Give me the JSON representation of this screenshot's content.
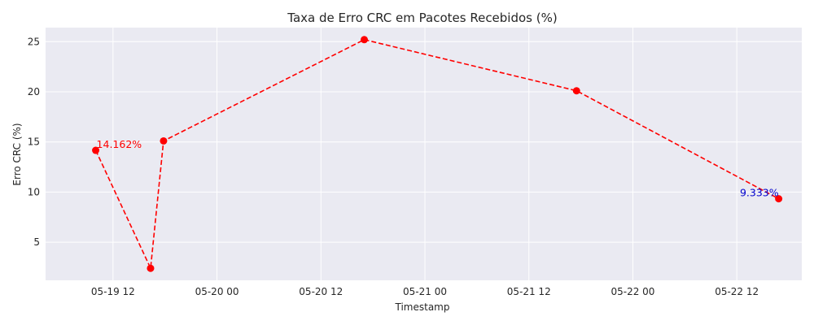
{
  "chart_data": {
    "type": "line",
    "title": "Taxa de Erro CRC em Pacotes Recebidos (%)",
    "xlabel": "Timestamp",
    "ylabel": "Erro CRC (%)",
    "x_tick_labels": [
      "05-19 12",
      "05-20 00",
      "05-20 12",
      "05-21 00",
      "05-21 12",
      "05-22 00",
      "05-22 12"
    ],
    "x_ticks": [
      "2024-05-19 12:00",
      "2024-05-20 00:00",
      "2024-05-20 12:00",
      "2024-05-21 00:00",
      "2024-05-21 12:00",
      "2024-05-22 00:00",
      "2024-05-22 12:00"
    ],
    "y_ticks": [
      5,
      10,
      15,
      20,
      25
    ],
    "xlim": [
      "2024-05-19 04:13",
      "2024-05-22 19:30"
    ],
    "ylim": [
      1.2,
      26.4
    ],
    "series": [
      {
        "x": [
          "2024-05-19 10:00",
          "2024-05-19 16:20",
          "2024-05-19 17:50",
          "2024-05-20 17:00",
          "2024-05-21 17:30",
          "2024-05-22 16:50"
        ],
        "values": [
          14.162,
          2.4,
          15.1,
          25.2,
          20.1,
          9.333
        ],
        "color": "#ff0000",
        "line_style": "dashed",
        "marker": "circle"
      }
    ],
    "annotations": [
      {
        "text": "14.162%",
        "x": "2024-05-19 10:00",
        "y": 14.162,
        "color": "#ff0000",
        "align": "start"
      },
      {
        "text": "9.333%",
        "x": "2024-05-22 16:50",
        "y": 9.333,
        "color": "#0000cd",
        "align": "end"
      }
    ],
    "grid": true,
    "background": "#eaeaf2",
    "grid_color": "#ffffff"
  }
}
